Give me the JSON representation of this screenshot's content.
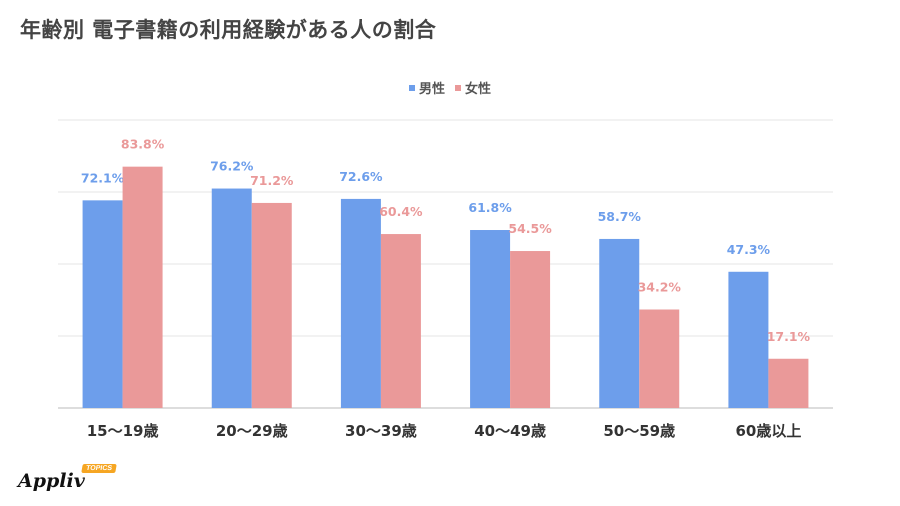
{
  "title": "年齢別 電子書籍の利用経験がある人の割合",
  "legend": {
    "male": "男性",
    "female": "女性"
  },
  "colors": {
    "male": "#6d9eeb",
    "female": "#ea9999",
    "male_label": "#6d9eeb",
    "female_label": "#ea9999",
    "grid": "#e6e6e6",
    "axis": "#bbbbbb"
  },
  "logo": {
    "text": "Appliv",
    "tag": "TOPICS"
  },
  "chart_data": {
    "type": "bar",
    "categories": [
      "15〜19歳",
      "20〜29歳",
      "30〜39歳",
      "40〜49歳",
      "50〜59歳",
      "60歳以上"
    ],
    "series": [
      {
        "name": "男性",
        "values": [
          72.1,
          76.2,
          72.6,
          61.8,
          58.7,
          47.3
        ],
        "labels": [
          "72.1%",
          "76.2%",
          "72.6%",
          "61.8%",
          "58.7%",
          "47.3%"
        ]
      },
      {
        "name": "女性",
        "values": [
          83.8,
          71.2,
          60.4,
          54.5,
          34.2,
          17.1
        ],
        "labels": [
          "83.8%",
          "71.2%",
          "60.4%",
          "54.5%",
          "34.2%",
          "17.1%"
        ]
      }
    ],
    "ylim": [
      0,
      100
    ],
    "grid": true,
    "legend_position": "top-center"
  }
}
